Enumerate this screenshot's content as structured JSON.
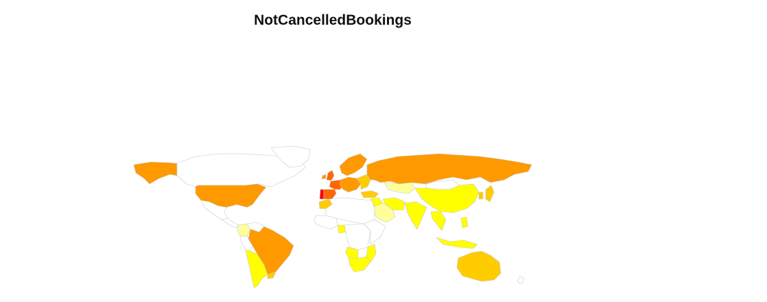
{
  "title": "NotCancelledBookings",
  "colors": {
    "none": "#ffffff",
    "low": "#ffff99",
    "lowmid": "#ffff00",
    "mid": "#ffcc00",
    "high": "#ff9900",
    "top_orange": "#ff6600",
    "top_red": "#ff0000",
    "border": "#c8c8c8"
  },
  "regions": [
    {
      "name": "alaska",
      "level": "high"
    },
    {
      "name": "canada",
      "level": "none"
    },
    {
      "name": "greenland",
      "level": "none"
    },
    {
      "name": "usa",
      "level": "high"
    },
    {
      "name": "mexico",
      "level": "none"
    },
    {
      "name": "central-america",
      "level": "none"
    },
    {
      "name": "colombia",
      "level": "low"
    },
    {
      "name": "venezuela",
      "level": "none"
    },
    {
      "name": "brazil",
      "level": "high"
    },
    {
      "name": "peru",
      "level": "none"
    },
    {
      "name": "chile-argentina",
      "level": "lowmid"
    },
    {
      "name": "uruguay",
      "level": "mid"
    },
    {
      "name": "portugal",
      "level": "top_red"
    },
    {
      "name": "spain",
      "level": "top_orange"
    },
    {
      "name": "france",
      "level": "top_orange"
    },
    {
      "name": "united-kingdom",
      "level": "top_orange"
    },
    {
      "name": "ireland",
      "level": "high"
    },
    {
      "name": "scandinavia",
      "level": "high"
    },
    {
      "name": "central-europe",
      "level": "high"
    },
    {
      "name": "eastern-europe",
      "level": "mid"
    },
    {
      "name": "russia",
      "level": "high"
    },
    {
      "name": "kazakhstan",
      "level": "low"
    },
    {
      "name": "turkey",
      "level": "mid"
    },
    {
      "name": "middle-east",
      "level": "lowmid"
    },
    {
      "name": "arabia",
      "level": "low"
    },
    {
      "name": "iran",
      "level": "lowmid"
    },
    {
      "name": "india",
      "level": "lowmid"
    },
    {
      "name": "china",
      "level": "lowmid"
    },
    {
      "name": "mongolia",
      "level": "none"
    },
    {
      "name": "japan",
      "level": "mid"
    },
    {
      "name": "korea",
      "level": "mid"
    },
    {
      "name": "southeast-asia",
      "level": "lowmid"
    },
    {
      "name": "indonesia",
      "level": "lowmid"
    },
    {
      "name": "philippines",
      "level": "lowmid"
    },
    {
      "name": "north-africa",
      "level": "none"
    },
    {
      "name": "morocco",
      "level": "mid"
    },
    {
      "name": "west-africa",
      "level": "none"
    },
    {
      "name": "nigeria",
      "level": "lowmid"
    },
    {
      "name": "central-africa",
      "level": "none"
    },
    {
      "name": "east-africa",
      "level": "none"
    },
    {
      "name": "angola",
      "level": "lowmid"
    },
    {
      "name": "mozambique",
      "level": "lowmid"
    },
    {
      "name": "south-africa",
      "level": "lowmid"
    },
    {
      "name": "australia",
      "level": "mid"
    },
    {
      "name": "new-zealand",
      "level": "none"
    }
  ]
}
